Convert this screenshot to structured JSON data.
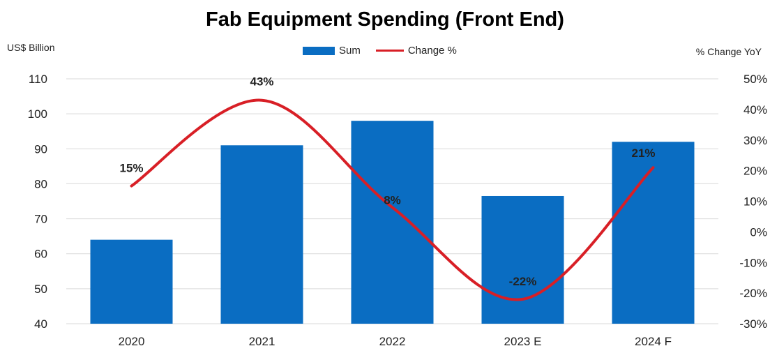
{
  "chart_data": {
    "type": "bar",
    "title": "Fab Equipment Spending (Front End)",
    "ylabel": "US$ Billion",
    "y2label": "% Change YoY",
    "categories": [
      "2020",
      "2021",
      "2022",
      "2023 E",
      "2024 F"
    ],
    "series": [
      {
        "name": "Sum",
        "type": "bar",
        "axis": "left",
        "color": "#0a6dc2",
        "values": [
          64,
          91,
          98,
          76.5,
          92
        ]
      },
      {
        "name": "Change %",
        "type": "line",
        "axis": "right",
        "color": "#d81f26",
        "values": [
          15,
          43,
          8,
          -22,
          21
        ],
        "labels": [
          "15%",
          "43%",
          "8%",
          "-22%",
          "21%"
        ]
      }
    ],
    "ylim": [
      40,
      110
    ],
    "yticks": [
      "40",
      "50",
      "60",
      "70",
      "80",
      "90",
      "100",
      "110"
    ],
    "y2lim": [
      -30,
      50
    ],
    "y2ticks": [
      "-30%",
      "-20%",
      "-10%",
      "0%",
      "10%",
      "20%",
      "30%",
      "40%",
      "50%"
    ],
    "grid": true,
    "legend": "top-center"
  }
}
